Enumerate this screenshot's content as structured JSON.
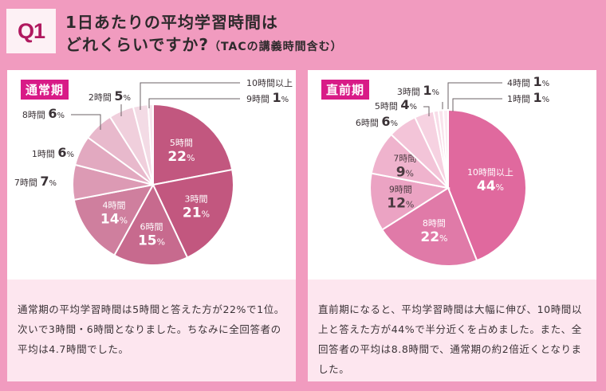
{
  "header": {
    "badge": "Q1",
    "title_line1": "1日あたりの平均学習時間は",
    "title_line2": "どれくらいですか?",
    "title_note": "（TACの講義時間含む）"
  },
  "panels": [
    {
      "tag": "通常期",
      "description": "通常期の平均学習時間は5時間と答えた方が22%で1位。次いで3時間・6時間となりました。ちなみに全回答者の平均は4.7時間でした。"
    },
    {
      "tag": "直前期",
      "description": "直前期になると、平均学習時間は大幅に伸び、10時間以上と答えた方が44%で半分近くを占めました。また、全回答者の平均は8.8時間で、通常期の約2倍近くとなりました。"
    }
  ],
  "chart_data": [
    {
      "type": "pie",
      "title": "通常期",
      "unit": "%",
      "slices": [
        {
          "label": "5時間",
          "value": 22,
          "color": "#c2577f"
        },
        {
          "label": "3時間",
          "value": 21,
          "color": "#c2577f"
        },
        {
          "label": "6時間",
          "value": 15,
          "color": "#c76a8e"
        },
        {
          "label": "4時間",
          "value": 14,
          "color": "#cf7f9e"
        },
        {
          "label": "7時間",
          "value": 7,
          "color": "#dc9ab4"
        },
        {
          "label": "1時間",
          "value": 6,
          "color": "#e2a9c0"
        },
        {
          "label": "8時間",
          "value": 6,
          "color": "#e8b9cc"
        },
        {
          "label": "2時間",
          "value": 5,
          "color": "#f0cfdc"
        },
        {
          "label": "10時間以上",
          "value": 3,
          "color": "#f3dbe5"
        },
        {
          "label": "9時間",
          "value": 1,
          "color": "#f7e6ee"
        }
      ]
    },
    {
      "type": "pie",
      "title": "直前期",
      "unit": "%",
      "slices": [
        {
          "label": "10時間以上",
          "value": 44,
          "color": "#e0699e"
        },
        {
          "label": "8時間",
          "value": 22,
          "color": "#e07aa8"
        },
        {
          "label": "9時間",
          "value": 12,
          "color": "#eba3c3"
        },
        {
          "label": "7時間",
          "value": 9,
          "color": "#efb3cd"
        },
        {
          "label": "6時間",
          "value": 6,
          "color": "#f3c4d8"
        },
        {
          "label": "5時間",
          "value": 4,
          "color": "#f6d2e1"
        },
        {
          "label": "3時間",
          "value": 1,
          "color": "#f8dce8"
        },
        {
          "label": "4時間",
          "value": 1,
          "color": "#f9e3ec"
        },
        {
          "label": "1時間",
          "value": 1,
          "color": "#fbeaf1"
        }
      ]
    }
  ]
}
